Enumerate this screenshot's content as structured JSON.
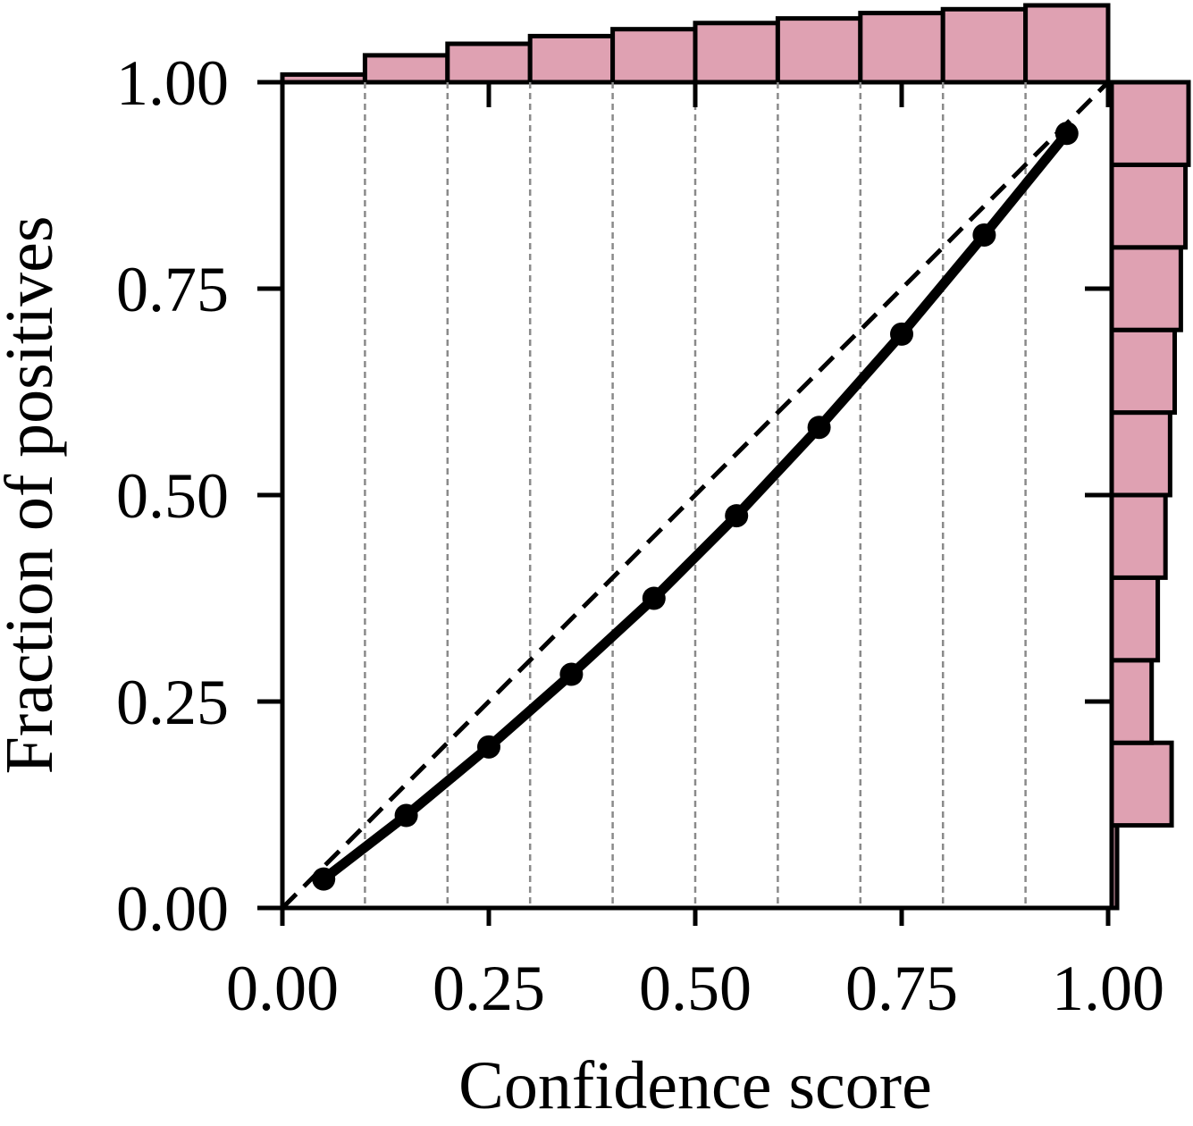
{
  "chart_data": {
    "type": "line",
    "title": "",
    "xlabel": "Confidence score",
    "ylabel": "Fraction of positives",
    "xlim": [
      0,
      1
    ],
    "ylim": [
      0,
      1
    ],
    "xticks": [
      0,
      0.25,
      0.5,
      0.75,
      1.0
    ],
    "xtick_labels": [
      "0.00",
      "0.25",
      "0.50",
      "0.75",
      "1.00"
    ],
    "yticks": [
      0,
      0.25,
      0.5,
      0.75,
      1.0
    ],
    "ytick_labels": [
      "0.00",
      "0.25",
      "0.50",
      "0.75",
      "1.00"
    ],
    "bin_edges": [
      0.1,
      0.2,
      0.3,
      0.4,
      0.5,
      0.6,
      0.7,
      0.8,
      0.9
    ],
    "grid": "vertical dashed lines at bin edges",
    "reference_line": {
      "style": "dashed",
      "from": [
        0,
        0
      ],
      "to": [
        1,
        1
      ]
    },
    "series": [
      {
        "x": [
          0.05,
          0.15,
          0.25,
          0.35,
          0.45,
          0.55,
          0.65,
          0.75,
          0.85,
          0.95
        ],
        "y": [
          0.035,
          0.112,
          0.195,
          0.283,
          0.375,
          0.475,
          0.582,
          0.695,
          0.815,
          0.938
        ]
      }
    ],
    "top_histogram": {
      "bins": [
        [
          0.0,
          0.1
        ],
        [
          0.1,
          0.2
        ],
        [
          0.2,
          0.3
        ],
        [
          0.3,
          0.4
        ],
        [
          0.4,
          0.5
        ],
        [
          0.5,
          0.6
        ],
        [
          0.6,
          0.7
        ],
        [
          0.7,
          0.8
        ],
        [
          0.8,
          0.9
        ],
        [
          0.9,
          1.0
        ]
      ],
      "relative_heights": [
        0.1,
        0.35,
        0.5,
        0.6,
        0.69,
        0.77,
        0.83,
        0.9,
        0.95,
        1.0
      ]
    },
    "right_histogram": {
      "bins": [
        [
          0.0,
          0.1
        ],
        [
          0.1,
          0.2
        ],
        [
          0.2,
          0.3
        ],
        [
          0.3,
          0.4
        ],
        [
          0.4,
          0.5
        ],
        [
          0.5,
          0.6
        ],
        [
          0.6,
          0.7
        ],
        [
          0.7,
          0.8
        ],
        [
          0.8,
          0.9
        ],
        [
          0.9,
          1.0
        ]
      ],
      "relative_widths": [
        0.07,
        0.78,
        0.52,
        0.6,
        0.7,
        0.76,
        0.82,
        0.9,
        0.96,
        1.0
      ]
    },
    "colors": {
      "histogram_fill": "#dfa1b2",
      "line": "#000000",
      "grid": "#8a8a8a"
    }
  }
}
